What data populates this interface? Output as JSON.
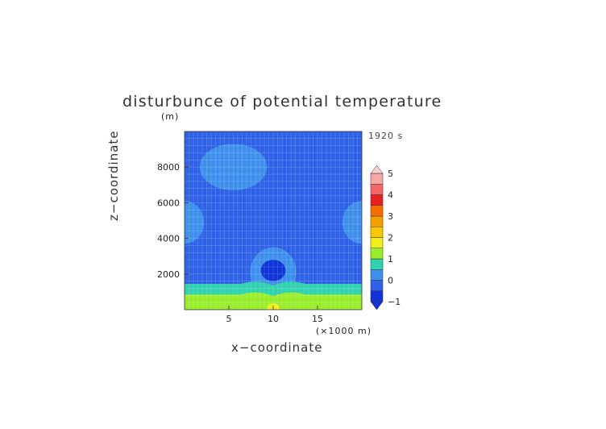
{
  "chart_data": {
    "type": "heatmap",
    "title": "disturbunce of potential temperature",
    "time_label": "1920 s",
    "xlabel": "x−coordinate",
    "ylabel": "z−coordinate",
    "x_unit": "(×1000 m)",
    "z_unit": "(m)",
    "xlim": [
      0,
      20
    ],
    "ylim": [
      0,
      10000
    ],
    "x_ticks": [
      5,
      10,
      15
    ],
    "y_ticks": [
      2000,
      4000,
      6000,
      8000
    ],
    "grid": true,
    "colorbar": {
      "labels": [
        "5",
        "4",
        "3",
        "2",
        "1",
        "0",
        "−1"
      ],
      "levels": [
        -1,
        -0.5,
        0,
        0.5,
        1,
        1.5,
        2,
        2.5,
        3,
        3.5,
        4,
        4.5,
        5
      ],
      "colors": [
        "#1034d8",
        "#2f62e6",
        "#3f90ec",
        "#32d2b0",
        "#9aed2c",
        "#f0f020",
        "#f9c800",
        "#f5a000",
        "#f46d00",
        "#e62020",
        "#f06868",
        "#f4a8a8"
      ],
      "extend_low_color": "#1034d8",
      "extend_high_color": "#f8d0d0"
    },
    "field_regions": [
      {
        "value": -0.25,
        "shape": "background"
      },
      {
        "value": 0.25,
        "shape": "blob",
        "center": [
          5.5,
          8000
        ],
        "size": [
          3.8,
          1300
        ]
      },
      {
        "value": 0.25,
        "shape": "blob",
        "center": [
          0,
          4900
        ],
        "size": [
          2.2,
          1200
        ]
      },
      {
        "value": 0.25,
        "shape": "blob",
        "center": [
          20,
          4900
        ],
        "size": [
          2.2,
          1200
        ]
      },
      {
        "value": 0.25,
        "shape": "blob",
        "center": [
          10,
          2100
        ],
        "size": [
          2.6,
          1400
        ]
      },
      {
        "value": 0.75,
        "shape": "layer",
        "z_range": [
          0,
          1450
        ]
      },
      {
        "value": 1.25,
        "shape": "layer",
        "z_range": [
          0,
          850
        ]
      },
      {
        "value": -0.75,
        "shape": "blob",
        "center": [
          10,
          2200
        ],
        "size": [
          1.4,
          600
        ]
      },
      {
        "value": 1.75,
        "shape": "blob",
        "center": [
          10,
          100
        ],
        "size": [
          0.7,
          250
        ]
      }
    ]
  }
}
